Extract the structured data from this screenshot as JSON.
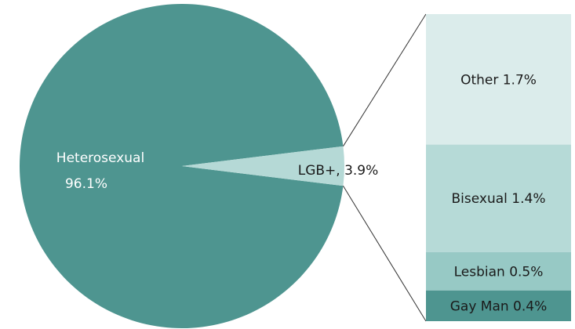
{
  "chart_data": [
    {
      "type": "pie",
      "slices": [
        {
          "label": "Heterosexual",
          "value_label": "96.1%",
          "value": 96.1,
          "color": "#4e9590"
        },
        {
          "label": "LGB+",
          "value_label": "3.9%",
          "value": 3.9,
          "color": "#b5d9d6",
          "display": "LGB+, 3.9%"
        }
      ]
    },
    {
      "type": "bar",
      "stacked": true,
      "segments": [
        {
          "label": "Other 1.7%",
          "value": 1.7,
          "color": "#dbeceb"
        },
        {
          "label": "Bisexual 1.4%",
          "value": 1.4,
          "color": "#b6dad7"
        },
        {
          "label": "Lesbian 0.5%",
          "value": 0.5,
          "color": "#97c9c5"
        },
        {
          "label": "Gay Man 0.4%",
          "value": 0.4,
          "color": "#4e9590"
        }
      ]
    }
  ]
}
